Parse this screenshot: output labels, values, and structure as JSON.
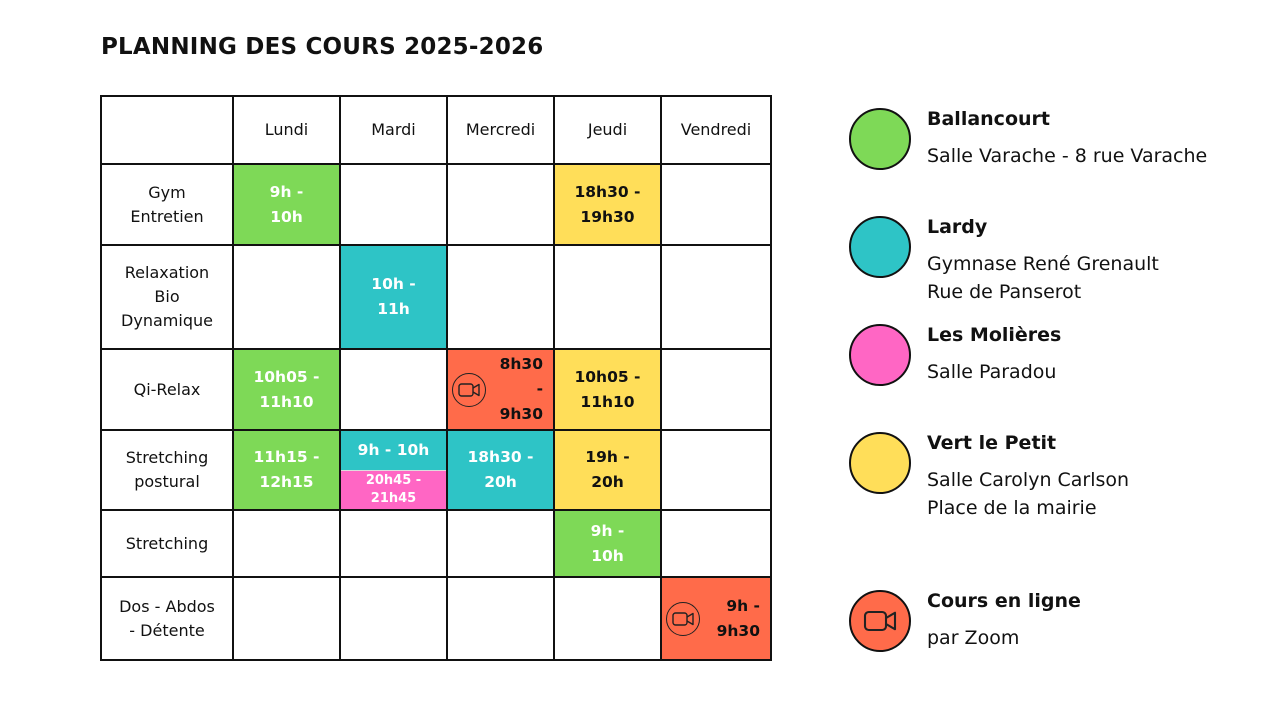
{
  "title": "PLANNING DES COURS 2025-2026",
  "colors": {
    "ballancourt": "#7ED957",
    "lardy": "#2EC4C6",
    "molieres": "#FF66C4",
    "vert": "#FFDE59",
    "online": "#FF6B4A"
  },
  "days": [
    "Lundi",
    "Mardi",
    "Mercredi",
    "Jeudi",
    "Vendredi"
  ],
  "rows": [
    {
      "course": "Gym Entretien",
      "cells": [
        {
          "text": "9h - 10h",
          "loc": "ballancourt"
        },
        null,
        null,
        {
          "text": "18h30 - 19h30",
          "loc": "vert"
        },
        null
      ]
    },
    {
      "course": "Relaxation Bio Dynamique",
      "cells": [
        null,
        {
          "text": "10h - 11h",
          "loc": "lardy"
        },
        null,
        null,
        null
      ]
    },
    {
      "course": "Qi-Relax",
      "cells": [
        {
          "text": "10h05 - 11h10",
          "loc": "ballancourt"
        },
        null,
        {
          "text": "8h30 - 9h30",
          "loc": "online",
          "icon": "video-camera-icon"
        },
        {
          "text": "10h05 - 11h10",
          "loc": "vert"
        },
        null
      ]
    },
    {
      "course": "Stretching postural",
      "cells": [
        {
          "text": "11h15 - 12h15",
          "loc": "ballancourt"
        },
        {
          "split": [
            {
              "text": "9h - 10h",
              "loc": "lardy"
            },
            {
              "text": "20h45 - 21h45",
              "loc": "molieres"
            }
          ]
        },
        {
          "text": "18h30 - 20h",
          "loc": "lardy"
        },
        {
          "text": "19h - 20h",
          "loc": "vert"
        },
        null
      ]
    },
    {
      "course": "Stretching",
      "cells": [
        null,
        null,
        null,
        {
          "text": "9h - 10h",
          "loc": "ballancourt"
        },
        null
      ]
    },
    {
      "course": "Dos - Abdos - Détente",
      "cells": [
        null,
        null,
        null,
        null,
        {
          "text": "9h - 9h30",
          "loc": "online",
          "icon": "video-camera-icon"
        }
      ]
    }
  ],
  "legend": [
    {
      "key": "ballancourt",
      "name": "Ballancourt",
      "lines": [
        "Salle Varache - 8 rue Varache"
      ]
    },
    {
      "key": "lardy",
      "name": "Lardy",
      "lines": [
        "Gymnase René Grenault",
        "Rue de Panserot"
      ]
    },
    {
      "key": "molieres",
      "name": "Les Molières",
      "lines": [
        "Salle Paradou"
      ]
    },
    {
      "key": "vert",
      "name": "Vert le Petit",
      "lines": [
        "Salle Carolyn Carlson",
        "Place de la mairie"
      ]
    },
    {
      "key": "online",
      "name": "Cours en ligne",
      "lines": [
        "par Zoom"
      ],
      "icon": "video-camera-icon"
    }
  ]
}
